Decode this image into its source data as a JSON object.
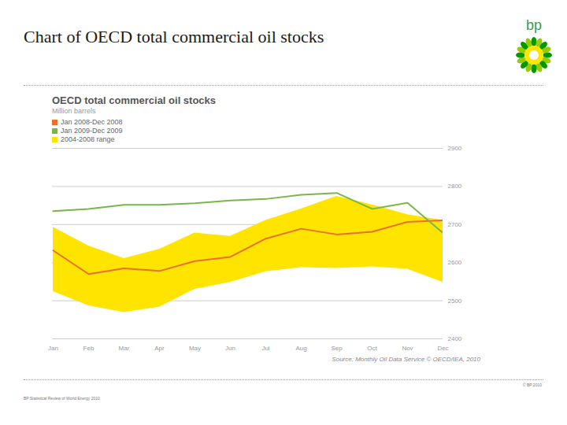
{
  "header": {
    "title": "Chart of OECD total commercial oil stocks",
    "logo": "bp"
  },
  "chart_data": {
    "type": "line",
    "title": "OECD total commercial oil stocks",
    "subtitle": "Million barrels",
    "categories": [
      "Jan",
      "Feb",
      "Mar",
      "Apr",
      "May",
      "Jun",
      "Jul",
      "Aug",
      "Sep",
      "Oct",
      "Nov",
      "Dec"
    ],
    "series": [
      {
        "name": "Jan 2008-Dec 2008",
        "color": "#e8702a",
        "type": "line",
        "values": [
          2632,
          2570,
          2585,
          2578,
          2604,
          2615,
          2663,
          2689,
          2674,
          2681,
          2707,
          2711
        ]
      },
      {
        "name": "Jan 2009-Dec 2009",
        "color": "#7ab648",
        "type": "line",
        "values": [
          2735,
          2741,
          2752,
          2752,
          2756,
          2763,
          2767,
          2778,
          2783,
          2741,
          2757,
          2678
        ]
      },
      {
        "name": "2004-2008 range",
        "color": "#ffe400",
        "type": "area",
        "low": [
          2524,
          2487,
          2469,
          2483,
          2530,
          2548,
          2576,
          2587,
          2585,
          2589,
          2583,
          2548
        ],
        "high": [
          2693,
          2644,
          2611,
          2635,
          2678,
          2669,
          2711,
          2741,
          2774,
          2752,
          2726,
          2711
        ]
      }
    ],
    "ylim": [
      2400,
      2900
    ],
    "yticks": [
      2400,
      2500,
      2600,
      2700,
      2800,
      2900
    ],
    "grid": true,
    "legend": "top-left",
    "source": "Source: Monthly Oil Data Service © OECD/IEA, 2010"
  },
  "footer": {
    "copyright": "© BP 2010",
    "publication": "BP Statistical Review of World Energy 2010"
  }
}
